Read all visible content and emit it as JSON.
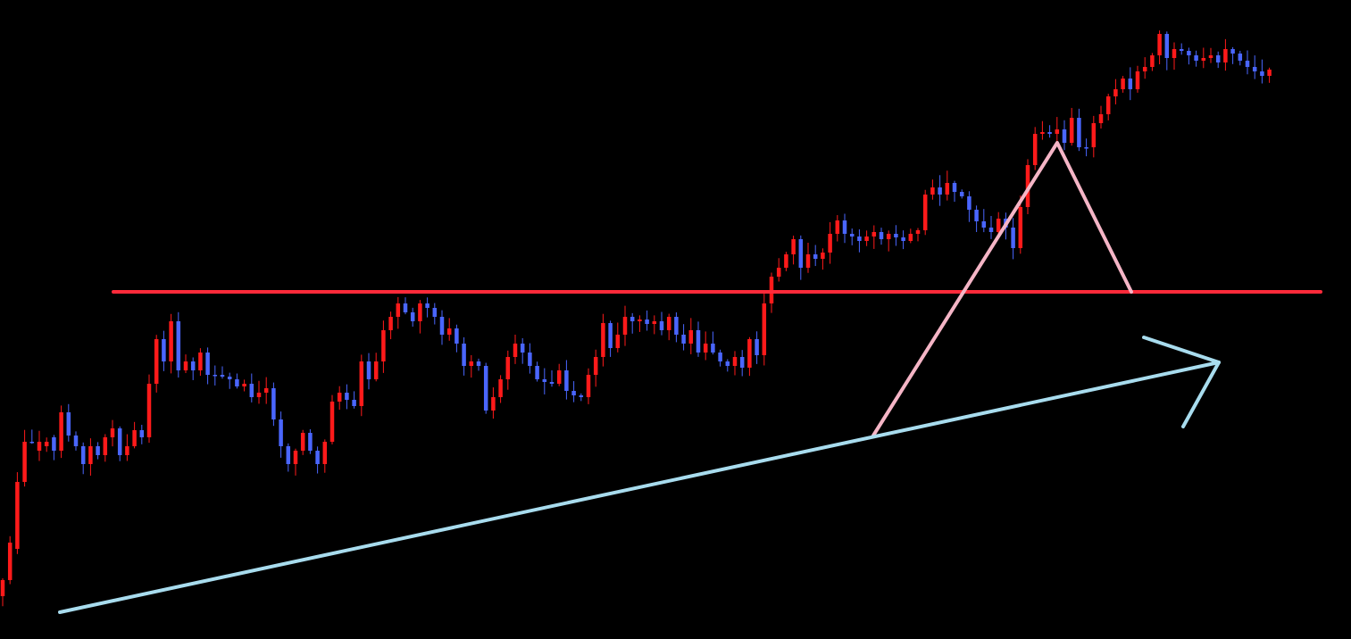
{
  "colors": {
    "background": "#000000",
    "bullish": "#ff1a1a",
    "bearish": "#4a66ff",
    "resistance_line": "#ff2a3a",
    "trend_line": "#a8dcee",
    "pullback_line": "#f5b5c6"
  },
  "chart_data": {
    "type": "candlestick",
    "grid": false,
    "legend": "none",
    "title": "",
    "xlabel": "",
    "ylabel": "",
    "ylim": [
      0,
      716
    ],
    "price_scale": "relative",
    "series": [
      {
        "points": [
          [
            668,
            650
          ],
          [
            650,
            608
          ],
          [
            615,
            540
          ],
          [
            540,
            495
          ],
          [
            495,
            495
          ],
          [
            505,
            495
          ],
          [
            500,
            495
          ],
          [
            490,
            505
          ],
          [
            505,
            462
          ],
          [
            462,
            488
          ],
          [
            488,
            500
          ],
          [
            500,
            520
          ],
          [
            520,
            500
          ],
          [
            500,
            510
          ],
          [
            510,
            490
          ],
          [
            490,
            480
          ],
          [
            480,
            510
          ],
          [
            510,
            500
          ],
          [
            500,
            482
          ],
          [
            482,
            490
          ],
          [
            490,
            430
          ],
          [
            430,
            380
          ],
          [
            380,
            405
          ],
          [
            405,
            360
          ],
          [
            360,
            415
          ],
          [
            415,
            405
          ],
          [
            405,
            415
          ],
          [
            415,
            395
          ],
          [
            395,
            420
          ],
          [
            420,
            420
          ],
          [
            420,
            422
          ],
          [
            422,
            425
          ],
          [
            425,
            433
          ],
          [
            433,
            430
          ],
          [
            430,
            445
          ],
          [
            445,
            440
          ],
          [
            440,
            435
          ],
          [
            435,
            470
          ],
          [
            470,
            500
          ],
          [
            500,
            520
          ],
          [
            520,
            505
          ],
          [
            505,
            485
          ],
          [
            485,
            505
          ],
          [
            505,
            520
          ],
          [
            520,
            495
          ],
          [
            495,
            450
          ],
          [
            450,
            440
          ],
          [
            440,
            448
          ],
          [
            448,
            455
          ],
          [
            455,
            405
          ],
          [
            405,
            425
          ],
          [
            425,
            405
          ],
          [
            405,
            370
          ],
          [
            370,
            355
          ],
          [
            355,
            340
          ],
          [
            340,
            350
          ],
          [
            350,
            360
          ],
          [
            360,
            340
          ],
          [
            340,
            345
          ],
          [
            345,
            355
          ],
          [
            355,
            375
          ],
          [
            375,
            368
          ],
          [
            368,
            385
          ],
          [
            385,
            410
          ],
          [
            410,
            405
          ],
          [
            405,
            410
          ],
          [
            410,
            460
          ],
          [
            460,
            445
          ],
          [
            445,
            425
          ],
          [
            425,
            400
          ],
          [
            400,
            385
          ],
          [
            385,
            395
          ],
          [
            395,
            410
          ],
          [
            410,
            425
          ],
          [
            425,
            428
          ],
          [
            428,
            430
          ],
          [
            430,
            415
          ],
          [
            415,
            438
          ],
          [
            438,
            443
          ],
          [
            443,
            445
          ],
          [
            445,
            420
          ],
          [
            420,
            400
          ],
          [
            400,
            362
          ],
          [
            362,
            390
          ],
          [
            390,
            375
          ],
          [
            375,
            355
          ],
          [
            355,
            360
          ],
          [
            360,
            358
          ],
          [
            358,
            363
          ],
          [
            363,
            360
          ],
          [
            360,
            370
          ],
          [
            370,
            355
          ],
          [
            355,
            375
          ],
          [
            375,
            385
          ],
          [
            385,
            370
          ],
          [
            370,
            395
          ],
          [
            395,
            385
          ],
          [
            385,
            395
          ],
          [
            395,
            405
          ],
          [
            405,
            410
          ],
          [
            410,
            400
          ],
          [
            400,
            412
          ],
          [
            412,
            380
          ],
          [
            380,
            398
          ],
          [
            398,
            340
          ],
          [
            340,
            310
          ],
          [
            310,
            300
          ],
          [
            300,
            285
          ],
          [
            285,
            268
          ],
          [
            268,
            300
          ],
          [
            300,
            285
          ],
          [
            285,
            290
          ],
          [
            290,
            283
          ],
          [
            283,
            262
          ],
          [
            262,
            247
          ],
          [
            247,
            262
          ],
          [
            262,
            265
          ],
          [
            265,
            270
          ],
          [
            270,
            265
          ],
          [
            265,
            260
          ],
          [
            260,
            268
          ],
          [
            268,
            262
          ],
          [
            262,
            266
          ],
          [
            266,
            270
          ],
          [
            270,
            262
          ],
          [
            262,
            258
          ],
          [
            258,
            218
          ],
          [
            218,
            210
          ],
          [
            210,
            218
          ],
          [
            218,
            205
          ],
          [
            205,
            215
          ],
          [
            215,
            220
          ],
          [
            220,
            235
          ],
          [
            235,
            248
          ],
          [
            248,
            255
          ],
          [
            255,
            260
          ],
          [
            260,
            245
          ],
          [
            245,
            255
          ],
          [
            255,
            278
          ],
          [
            278,
            232
          ],
          [
            232,
            185
          ],
          [
            185,
            150
          ],
          [
            150,
            148
          ],
          [
            148,
            150
          ],
          [
            150,
            145
          ],
          [
            145,
            160
          ],
          [
            160,
            132
          ],
          [
            132,
            165
          ],
          [
            165,
            165
          ],
          [
            165,
            138
          ],
          [
            138,
            128
          ],
          [
            128,
            108
          ],
          [
            108,
            100
          ],
          [
            100,
            88
          ],
          [
            88,
            100
          ],
          [
            100,
            80
          ],
          [
            80,
            75
          ],
          [
            75,
            62
          ],
          [
            62,
            38
          ],
          [
            38,
            65
          ],
          [
            65,
            55
          ],
          [
            55,
            57
          ],
          [
            57,
            62
          ],
          [
            62,
            68
          ],
          [
            68,
            65
          ],
          [
            65,
            62
          ],
          [
            62,
            70
          ],
          [
            70,
            55
          ],
          [
            55,
            60
          ],
          [
            60,
            68
          ],
          [
            68,
            75
          ],
          [
            75,
            80
          ],
          [
            80,
            85
          ],
          [
            85,
            78
          ]
        ]
      }
    ],
    "annotations": [
      {
        "type": "horizontal_line",
        "role": "resistance",
        "y": 327
      },
      {
        "type": "polyline",
        "role": "pullback",
        "points": [
          [
            978,
            488
          ],
          [
            1184,
            160
          ],
          [
            1267,
            327
          ]
        ]
      },
      {
        "type": "arrow",
        "role": "uptrend",
        "from": [
          67,
          686
        ],
        "to": [
          1365,
          406
        ]
      }
    ]
  }
}
